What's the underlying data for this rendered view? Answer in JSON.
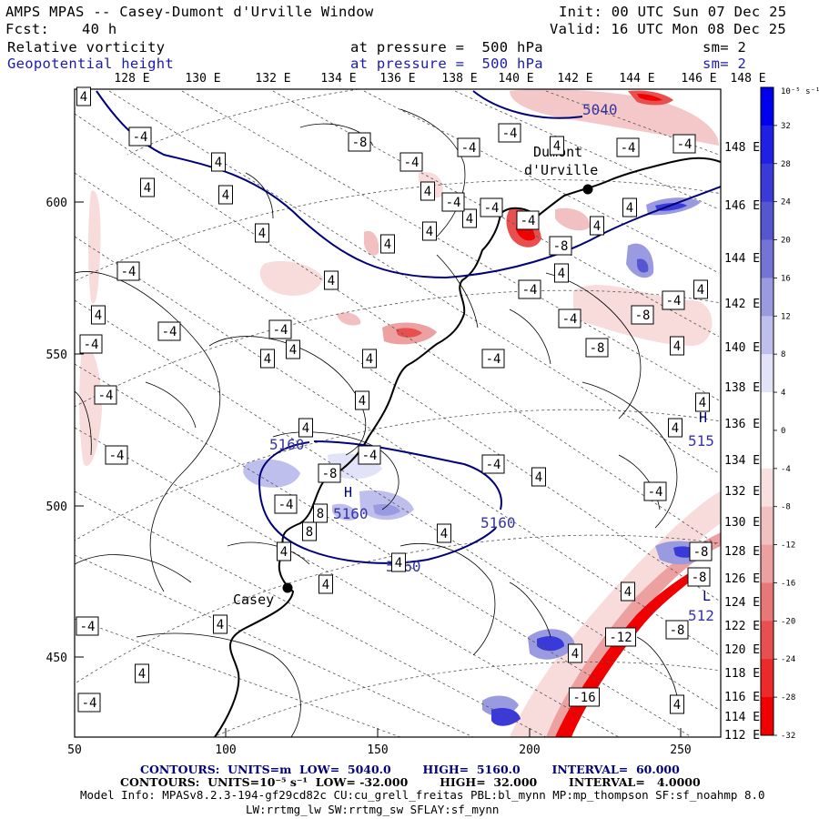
{
  "header": {
    "title": "AMPS MPAS -- Casey-Dumont d'Urville Window",
    "init": "Init: 00 UTC Sun 07 Dec 25",
    "fcst_label": "Fcst:",
    "fcst_value": "40 h",
    "valid": "Valid: 16 UTC Mon 08 Dec 25",
    "field1": "Relative vorticity",
    "field1_level": "at pressure =  500 hPa",
    "field1_sm": "sm= 2",
    "field2": "Geopotential height",
    "field2_level": "at pressure =  500 hPa",
    "field2_sm": "sm= 2"
  },
  "top_lon_labels": [
    "128 E",
    "130 E",
    "132 E",
    "134 E",
    "136 E",
    "138 E",
    "140 E",
    "142 E",
    "144 E",
    "146 E",
    "148 E"
  ],
  "right_lon_labels": [
    "148 E",
    "146 E",
    "144 E",
    "142 E",
    "140 E",
    "138 E",
    "136 E",
    "134 E",
    "132 E",
    "130 E",
    "128 E",
    "126 E",
    "124 E",
    "122 E",
    "120 E",
    "118 E",
    "116 E",
    "114 E",
    "112 E"
  ],
  "x_ticks": [
    "50",
    "100",
    "150",
    "200",
    "250"
  ],
  "y_ticks": [
    "600",
    "550",
    "500",
    "450"
  ],
  "colorbar": {
    "units": "10⁻⁵ s⁻¹",
    "labels": [
      "32",
      "28",
      "24",
      "20",
      "16",
      "12",
      "8",
      "4",
      "0",
      "-4",
      "-8",
      "-12",
      "-16",
      "-20",
      "-24",
      "-28",
      "-32"
    ],
    "colors": [
      "#0000ee",
      "#1f1fe6",
      "#3a3ad8",
      "#5656d0",
      "#7474d6",
      "#9a9ae0",
      "#bfbfee",
      "#e2e2f8",
      "#ffffff",
      "#ffffff",
      "#f8e0e0",
      "#f2c0c0",
      "#eda0a0",
      "#e87878",
      "#e85050",
      "#ec2a2a",
      "#f00000"
    ]
  },
  "places": {
    "dumont": "Dumont\nd'Urville",
    "casey": "Casey"
  },
  "height_labels": [
    "5040",
    "5160",
    "5160",
    "5160",
    "5160",
    "515",
    "512"
  ],
  "hl_markers": [
    "H",
    "H",
    "L"
  ],
  "vort_labels": [
    "4",
    "-4",
    "4",
    "-8",
    "-4",
    "-4",
    "4",
    "-4",
    "-4",
    "4",
    "4",
    "-4",
    "-4",
    "4",
    "4",
    "-4",
    "4",
    "-4",
    "-4",
    "4",
    "-4",
    "-4",
    "4",
    "4",
    "-4",
    "-8",
    "4",
    "4",
    "-8",
    "-4",
    "4",
    "4",
    "4",
    "-4",
    "-8",
    "-4",
    "4",
    "-4",
    "8",
    "4",
    "4",
    "8",
    "4",
    "4",
    "4",
    "-4",
    "4",
    "4",
    "4",
    "-8",
    "-12",
    "-8",
    "4",
    "-4",
    "4",
    "-16",
    "-4",
    "4",
    "4",
    "4",
    "-4",
    "-4",
    "4",
    "-4",
    "-8",
    "-4",
    "-8",
    "-4",
    "4",
    "4",
    "4"
  ],
  "footer": {
    "line1": "CONTOURS:  UNITS=m  LOW=  5040.0        HIGH=  5160.0        INTERVAL=  60.000",
    "line2": "CONTOURS:  UNITS=10⁻⁵ s⁻¹  LOW= -32.000        HIGH=  32.000        INTERVAL=   4.0000",
    "line3": "Model Info: MPASv8.2.3-194-gf29cd82c CU:cu_grell_freitas PBL:bl_mynn MP:mp_thompson SF:sf_noahmp 8.0",
    "line4": "LW:rrtmg_lw SW:rrtmg_sw SFLAY:sf_mynn"
  }
}
